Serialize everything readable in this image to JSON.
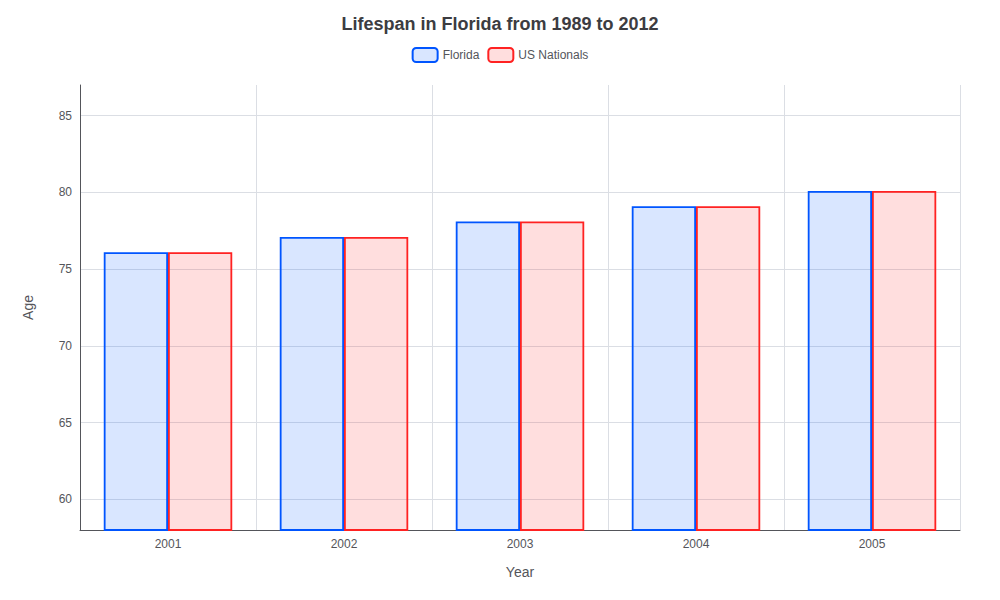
{
  "chart_data": {
    "type": "bar",
    "title": "Lifespan in Florida from 1989 to 2012",
    "x_label": "Year",
    "y_label": "Age",
    "categories": [
      "2001",
      "2002",
      "2003",
      "2004",
      "2005"
    ],
    "series": [
      {
        "name": "Florida",
        "color": "#0055ff",
        "values": [
          76.1,
          77.1,
          78.1,
          79.1,
          80.1
        ]
      },
      {
        "name": "US Nationals",
        "color": "#ff2222",
        "values": [
          76.1,
          77.1,
          78.1,
          79.1,
          80.1
        ]
      }
    ],
    "ylim": [
      58,
      87
    ],
    "yticks": [
      60,
      65,
      70,
      75,
      80,
      85
    ],
    "grid": true,
    "legend": "top"
  }
}
